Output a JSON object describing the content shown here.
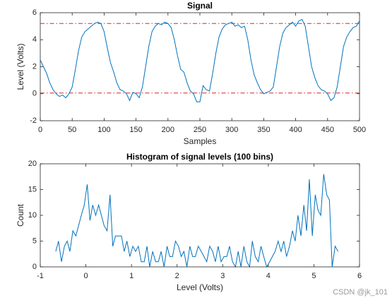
{
  "chart_data": [
    {
      "type": "line",
      "title": "Signal",
      "x_label": "Samples",
      "y_label": "Level (Volts)",
      "x": [
        0,
        5,
        10,
        15,
        20,
        25,
        30,
        35,
        40,
        45,
        50,
        55,
        60,
        65,
        70,
        75,
        80,
        85,
        90,
        95,
        100,
        105,
        110,
        115,
        120,
        125,
        130,
        135,
        140,
        145,
        150,
        155,
        160,
        165,
        170,
        175,
        180,
        185,
        190,
        195,
        200,
        205,
        210,
        215,
        220,
        225,
        230,
        235,
        240,
        245,
        250,
        255,
        260,
        265,
        270,
        275,
        280,
        285,
        290,
        295,
        300,
        305,
        310,
        315,
        320,
        325,
        330,
        335,
        340,
        345,
        350,
        355,
        360,
        365,
        370,
        375,
        380,
        385,
        390,
        395,
        400,
        405,
        410,
        415,
        420,
        425,
        430,
        435,
        440,
        445,
        450,
        455,
        460,
        465,
        470,
        475,
        480,
        485,
        490,
        495,
        500
      ],
      "series": [
        {
          "color": "#0072bd",
          "values": [
            2.5,
            2.0,
            1.5,
            0.8,
            0.3,
            0.0,
            -0.2,
            -0.1,
            -0.3,
            0.0,
            0.5,
            1.8,
            3.2,
            4.2,
            4.6,
            4.8,
            5.0,
            5.2,
            5.3,
            5.2,
            4.6,
            3.4,
            2.3,
            1.6,
            0.8,
            0.3,
            0.2,
            0.0,
            -0.5,
            0.1,
            0.0,
            -0.3,
            0.5,
            2.0,
            3.5,
            4.6,
            5.0,
            5.2,
            5.1,
            5.3,
            5.2,
            4.9,
            4.0,
            2.8,
            1.8,
            1.6,
            0.8,
            0.2,
            0.0,
            -0.6,
            -0.6,
            0.6,
            0.3,
            0.2,
            1.5,
            3.0,
            4.2,
            4.8,
            5.1,
            5.2,
            5.3,
            5.0,
            5.1,
            4.9,
            5.0,
            4.0,
            2.5,
            1.4,
            0.8,
            0.3,
            0.0,
            0.1,
            0.2,
            0.5,
            2.0,
            3.5,
            4.5,
            4.9,
            5.1,
            5.3,
            5.0,
            5.4,
            5.5,
            5.0,
            3.5,
            2.0,
            1.2,
            0.6,
            0.3,
            0.2,
            0.0,
            -0.5,
            -0.3,
            0.5,
            2.0,
            3.5,
            4.2,
            4.6,
            4.9,
            5.0,
            5.4
          ]
        }
      ],
      "hlines": [
        0.05,
        5.2
      ],
      "hline_color": "#d62728",
      "hline_style": "dashdot",
      "xlim": [
        0,
        500
      ],
      "xticks": [
        0,
        50,
        100,
        150,
        200,
        250,
        300,
        350,
        400,
        450,
        500
      ],
      "ylim": [
        -2,
        6
      ],
      "yticks": [
        -2,
        0,
        2,
        4,
        6
      ]
    },
    {
      "type": "line",
      "title": "Histogram of signal levels (100 bins)",
      "x_label": "Level (Volts)",
      "y_label": "Count",
      "x": [
        -0.66,
        -0.6,
        -0.535,
        -0.47,
        -0.41,
        -0.35,
        -0.285,
        -0.22,
        -0.16,
        -0.1,
        -0.035,
        0.03,
        0.09,
        0.15,
        0.215,
        0.28,
        0.34,
        0.4,
        0.465,
        0.53,
        0.59,
        0.65,
        0.715,
        0.78,
        0.84,
        0.9,
        0.965,
        1.03,
        1.09,
        1.15,
        1.215,
        1.28,
        1.34,
        1.4,
        1.465,
        1.53,
        1.59,
        1.65,
        1.715,
        1.78,
        1.84,
        1.9,
        1.965,
        2.03,
        2.09,
        2.15,
        2.215,
        2.28,
        2.34,
        2.4,
        2.465,
        2.53,
        2.59,
        2.65,
        2.715,
        2.78,
        2.84,
        2.9,
        2.965,
        3.03,
        3.09,
        3.15,
        3.215,
        3.28,
        3.34,
        3.4,
        3.465,
        3.53,
        3.59,
        3.65,
        3.715,
        3.78,
        3.84,
        3.9,
        3.965,
        4.03,
        4.09,
        4.15,
        4.215,
        4.28,
        4.34,
        4.4,
        4.465,
        4.53,
        4.59,
        4.65,
        4.715,
        4.78,
        4.84,
        4.9,
        4.965,
        5.03,
        5.09,
        5.15,
        5.215,
        5.28,
        5.34,
        5.4,
        5.465,
        5.53
      ],
      "series": [
        {
          "color": "#0072bd",
          "values": [
            3,
            5,
            1,
            4,
            5,
            3,
            7,
            6,
            8,
            10,
            12,
            16,
            9,
            12,
            10,
            12,
            10,
            8,
            7,
            14,
            4,
            6,
            6,
            6,
            3,
            5,
            2,
            4,
            3,
            4,
            1,
            1,
            4,
            0,
            3,
            1,
            1,
            3,
            0,
            4,
            2,
            2,
            5,
            4,
            2,
            3,
            0,
            4,
            2,
            2,
            4,
            3,
            2,
            1,
            4,
            3,
            1,
            4,
            1,
            2,
            2,
            4,
            1,
            0,
            3,
            0,
            4,
            1,
            0,
            5,
            2,
            1,
            4,
            2,
            0,
            1,
            2,
            3,
            5,
            3,
            5,
            2,
            4,
            7,
            5,
            10,
            6,
            12,
            7,
            17,
            6,
            14,
            11,
            10,
            18,
            14,
            13,
            0,
            4,
            3
          ]
        }
      ],
      "xlim": [
        -1,
        6
      ],
      "xticks": [
        -1,
        0,
        1,
        2,
        3,
        4,
        5,
        6
      ],
      "ylim": [
        0,
        20
      ],
      "yticks": [
        0,
        5,
        10,
        15,
        20
      ]
    }
  ],
  "watermark": "CSDN @jk_101"
}
